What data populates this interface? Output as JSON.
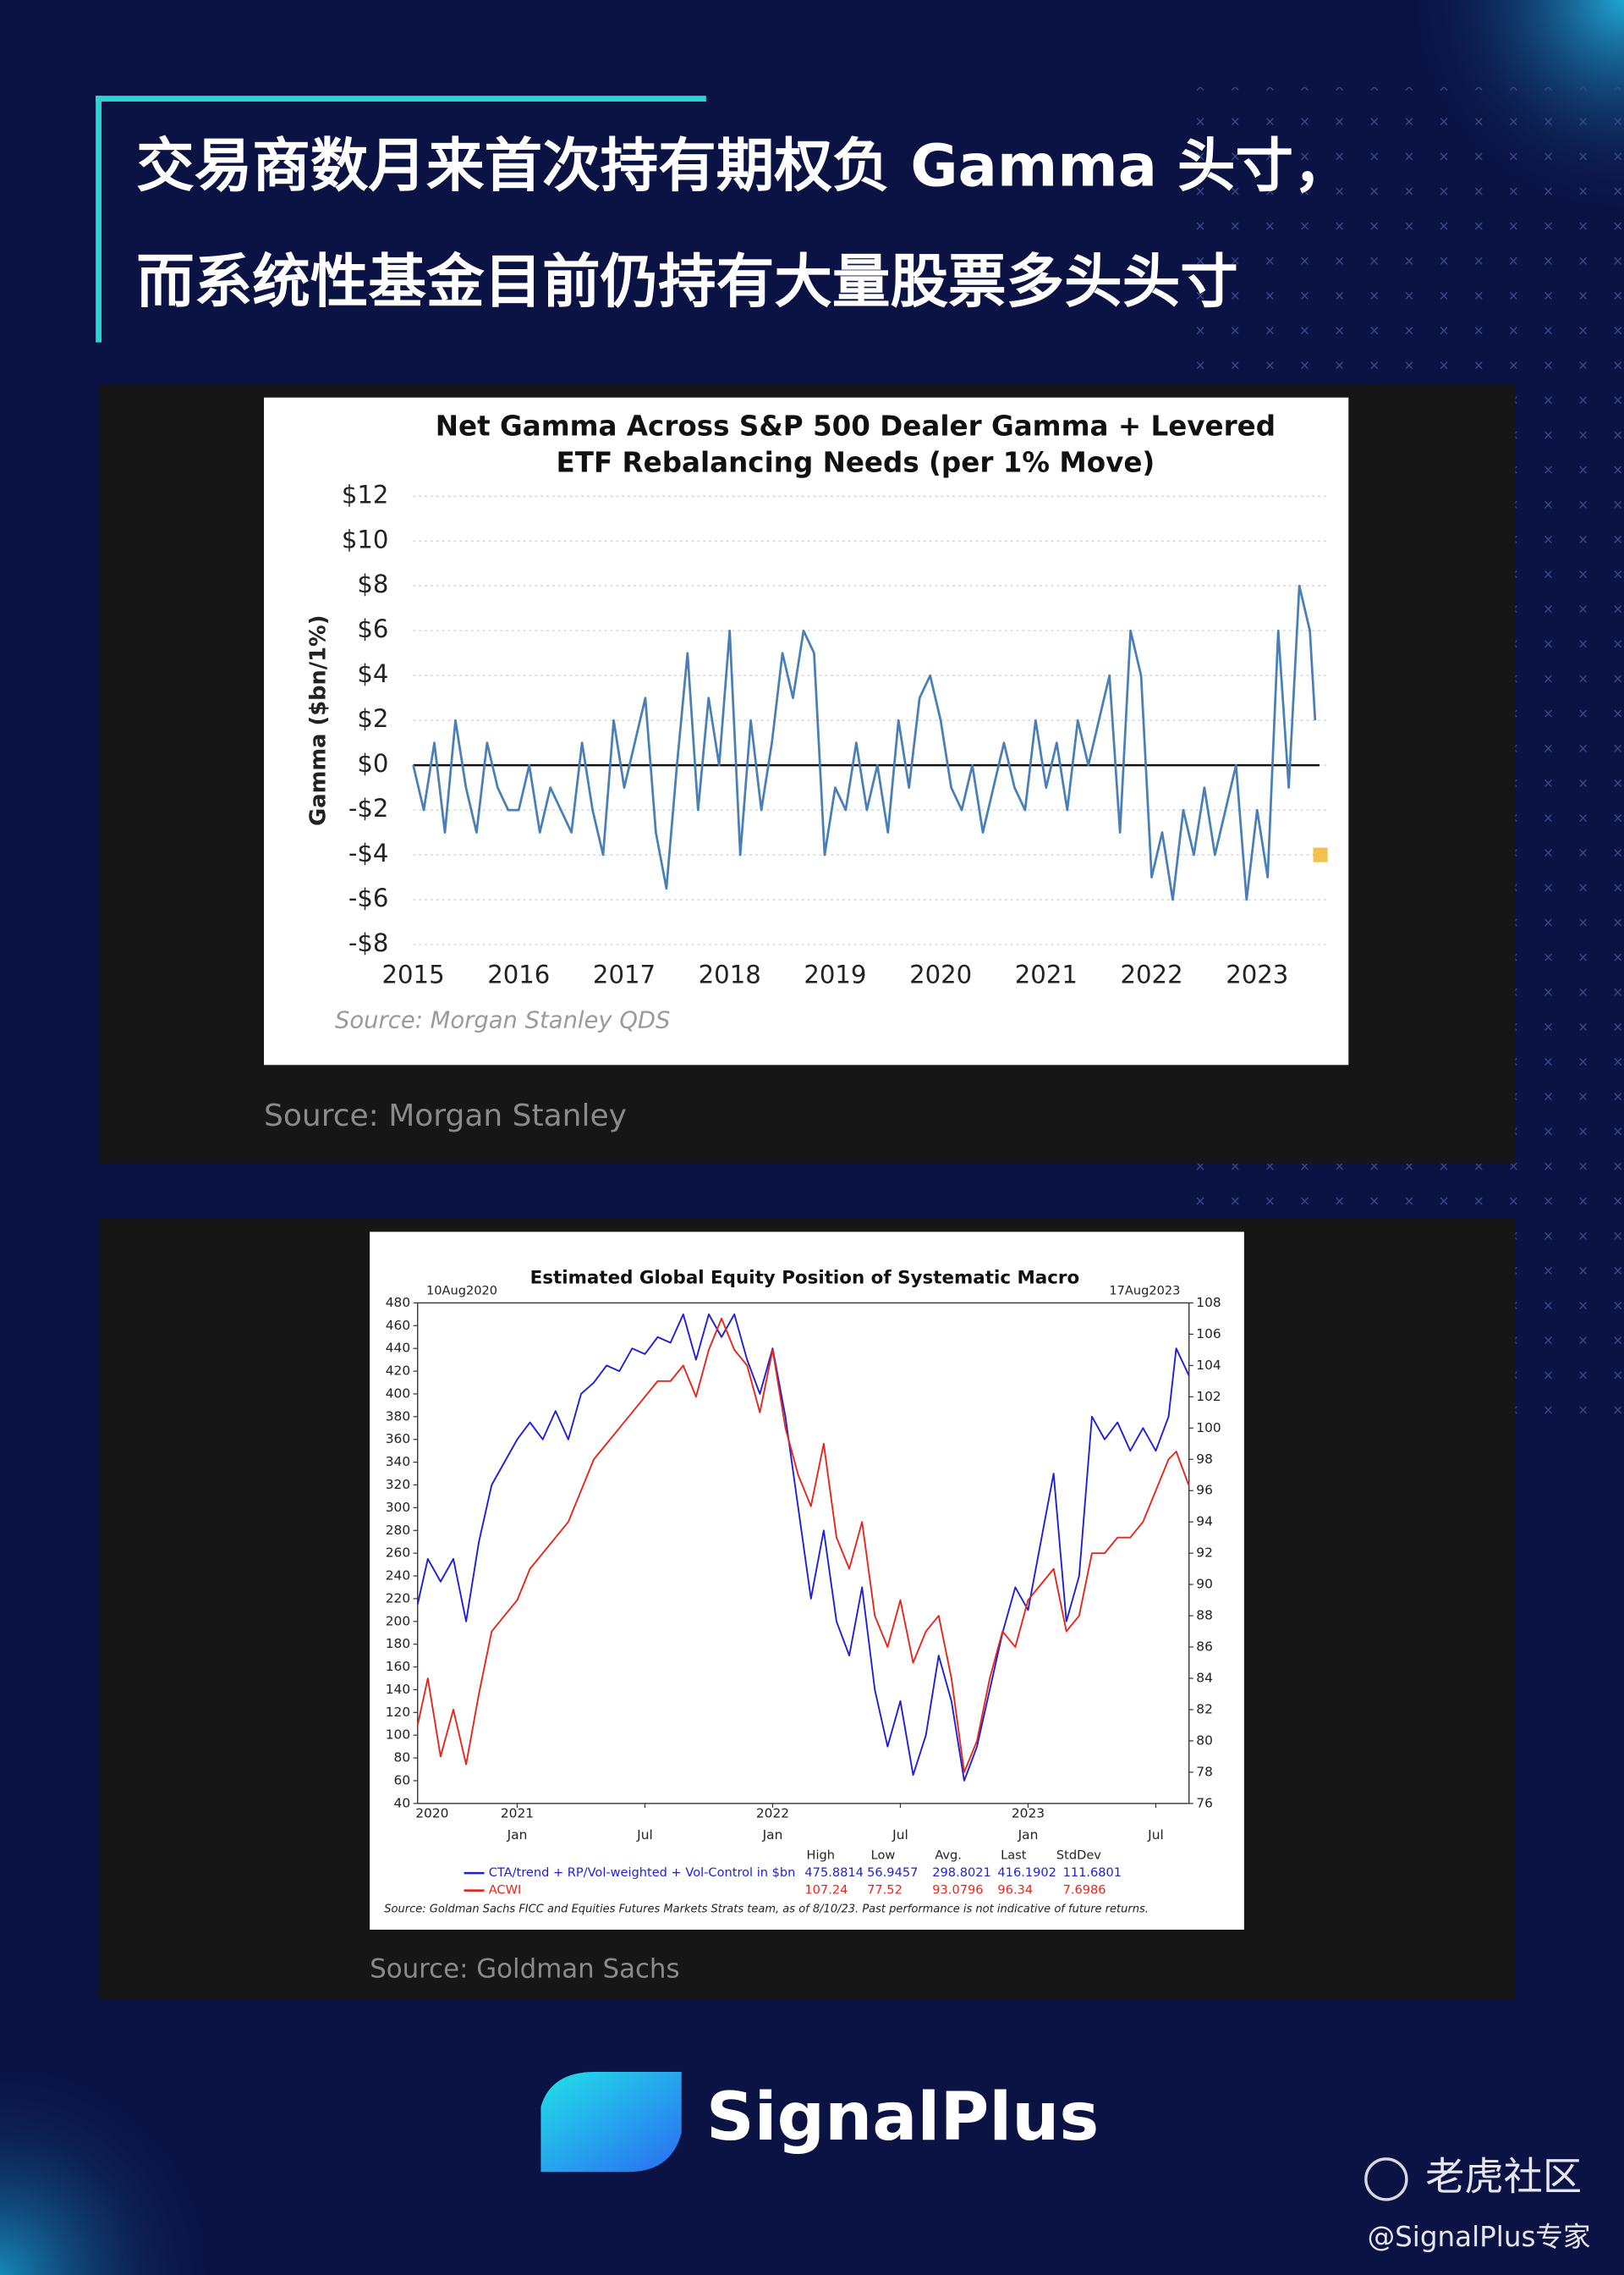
{
  "header": {
    "title": [
      "交易商数月来首次持有期权负 Gamma 头寸，",
      "而系统性基金目前仍持有大量股票多头头寸"
    ]
  },
  "chart_data": [
    {
      "type": "line",
      "title": [
        "Net Gamma Across S&P 500 Dealer Gamma + Levered",
        "ETF Rebalancing Needs (per 1% Move)"
      ],
      "ylabel": "Gamma ($bn/1%)",
      "source": "Source: Morgan Stanley QDS",
      "x": [
        2015.0,
        2015.1,
        2015.2,
        2015.3,
        2015.4,
        2015.5,
        2015.6,
        2015.7,
        2015.8,
        2015.9,
        2016.0,
        2016.1,
        2016.2,
        2016.3,
        2016.4,
        2016.5,
        2016.6,
        2016.7,
        2016.8,
        2016.9,
        2017.0,
        2017.1,
        2017.2,
        2017.3,
        2017.4,
        2017.5,
        2017.6,
        2017.7,
        2017.8,
        2017.9,
        2018.0,
        2018.1,
        2018.2,
        2018.3,
        2018.4,
        2018.5,
        2018.6,
        2018.7,
        2018.8,
        2018.9,
        2019.0,
        2019.1,
        2019.2,
        2019.3,
        2019.4,
        2019.5,
        2019.6,
        2019.7,
        2019.8,
        2019.9,
        2020.0,
        2020.1,
        2020.2,
        2020.3,
        2020.4,
        2020.5,
        2020.6,
        2020.7,
        2020.8,
        2020.9,
        2021.0,
        2021.1,
        2021.2,
        2021.3,
        2021.4,
        2021.5,
        2021.6,
        2021.7,
        2021.8,
        2021.9,
        2022.0,
        2022.1,
        2022.2,
        2022.3,
        2022.4,
        2022.5,
        2022.6,
        2022.7,
        2022.8,
        2022.9,
        2023.0,
        2023.1,
        2023.2,
        2023.3,
        2023.4,
        2023.5,
        2023.55
      ],
      "series": [
        {
          "name": "Net Gamma",
          "color": "#4a7fb5",
          "values": [
            0,
            -2,
            1,
            -3,
            2,
            -1,
            -3,
            1,
            -1,
            -2,
            -2,
            0,
            -3,
            -1,
            -2,
            -3,
            1,
            -2,
            -4,
            2,
            -1,
            1,
            3,
            -3,
            -5.5,
            0,
            5,
            -2,
            3,
            0,
            6,
            -4,
            2,
            -2,
            1,
            5,
            3,
            6,
            5,
            -4,
            -1,
            -2,
            1,
            -2,
            0,
            -3,
            2,
            -1,
            3,
            4,
            2,
            -1,
            -2,
            0,
            -3,
            -1,
            1,
            -1,
            -2,
            2,
            -1,
            1,
            -2,
            2,
            0,
            2,
            4,
            -3,
            6,
            4,
            -5,
            -3,
            -6,
            -2,
            -4,
            -1,
            -4,
            -2,
            0,
            -6,
            -2,
            -5,
            6,
            -1,
            8,
            6,
            2
          ]
        }
      ],
      "markers": [
        {
          "x": 2023.6,
          "value": -4,
          "color": "#f2c14e"
        }
      ],
      "reference_line": 0,
      "xlim": [
        2015,
        2023.66
      ],
      "xticks": [
        2015,
        2016,
        2017,
        2018,
        2019,
        2020,
        2021,
        2022,
        2023
      ],
      "ylim": [
        -8,
        12
      ],
      "yticks": [
        {
          "value": -8,
          "label": "-$8"
        },
        {
          "value": -6,
          "label": "-$6"
        },
        {
          "value": -4,
          "label": "-$4"
        },
        {
          "value": -2,
          "label": "-$2"
        },
        {
          "value": 0,
          "label": "$0"
        },
        {
          "value": 2,
          "label": "$2"
        },
        {
          "value": 4,
          "label": "$4"
        },
        {
          "value": 6,
          "label": "$6"
        },
        {
          "value": 8,
          "label": "$8"
        },
        {
          "value": 10,
          "label": "$10"
        },
        {
          "value": 12,
          "label": "$12"
        }
      ],
      "grid": true,
      "caption": "Source: Morgan Stanley"
    },
    {
      "type": "line",
      "title": [
        "Estimated Global Equity Position of Systematic Macro"
      ],
      "date_labels": [
        "10Aug2020",
        "17Aug2023"
      ],
      "source": "Source: Goldman Sachs FICC and Equities Futures Markets Strats team, as of 8/10/23. Past performance is not indicative of future returns.",
      "x": [
        2020.61,
        2020.65,
        2020.7,
        2020.75,
        2020.8,
        2020.85,
        2020.9,
        2020.95,
        2021.0,
        2021.05,
        2021.1,
        2021.15,
        2021.2,
        2021.25,
        2021.3,
        2021.35,
        2021.4,
        2021.45,
        2021.5,
        2021.55,
        2021.6,
        2021.65,
        2021.7,
        2021.75,
        2021.8,
        2021.85,
        2021.9,
        2021.95,
        2022.0,
        2022.05,
        2022.1,
        2022.15,
        2022.2,
        2022.25,
        2022.3,
        2022.35,
        2022.4,
        2022.45,
        2022.5,
        2022.55,
        2022.6,
        2022.65,
        2022.7,
        2022.75,
        2022.8,
        2022.85,
        2022.9,
        2022.95,
        2023.0,
        2023.05,
        2023.1,
        2023.15,
        2023.2,
        2023.25,
        2023.3,
        2023.35,
        2023.4,
        2023.45,
        2023.5,
        2023.55,
        2023.58,
        2023.63
      ],
      "series": [
        {
          "name": "CTA/trend + RP/Vol-weighted + Vol-Control in $bn",
          "color": "#1f1fd0",
          "values": [
            215,
            255,
            235,
            255,
            200,
            270,
            320,
            340,
            360,
            375,
            360,
            385,
            360,
            400,
            410,
            425,
            420,
            440,
            435,
            450,
            445,
            470,
            430,
            470,
            450,
            470,
            430,
            400,
            440,
            380,
            300,
            220,
            280,
            200,
            170,
            230,
            140,
            90,
            130,
            65,
            100,
            170,
            130,
            60,
            90,
            140,
            190,
            230,
            210,
            270,
            330,
            200,
            240,
            380,
            360,
            375,
            350,
            370,
            350,
            380,
            440,
            416
          ]
        },
        {
          "name": "ACWI",
          "color": "#e0281e",
          "axis": "y2",
          "values": [
            81,
            84,
            79,
            82,
            78.5,
            83,
            87,
            88,
            89,
            91,
            92,
            93,
            94,
            96,
            98,
            99,
            100,
            101,
            102,
            103,
            103,
            104,
            102,
            105,
            107,
            105,
            104,
            101,
            105,
            100,
            97,
            95,
            99,
            93,
            91,
            94,
            88,
            86,
            89,
            85,
            87,
            88,
            84,
            78,
            80,
            84,
            87,
            86,
            89,
            90,
            91,
            87,
            88,
            92,
            92,
            93,
            93,
            94,
            96,
            98,
            98.5,
            96.3
          ]
        }
      ],
      "stats": {
        "columns": [
          "High",
          "Low",
          "Avg.",
          "Last",
          "StdDev"
        ],
        "rows": [
          [
            475.8814,
            56.9457,
            298.8021,
            416.1902,
            111.6801
          ],
          [
            107.24,
            77.52,
            93.0796,
            96.34,
            7.6986
          ]
        ]
      },
      "xlim": [
        2020.61,
        2023.63
      ],
      "xticks": [
        {
          "value": 2021.0,
          "label": "Jan"
        },
        {
          "value": 2021.5,
          "label": "Jul"
        },
        {
          "value": 2022.0,
          "label": "Jan"
        },
        {
          "value": 2022.5,
          "label": "Jul"
        },
        {
          "value": 2023.0,
          "label": "Jan"
        },
        {
          "value": 2023.5,
          "label": "Jul"
        }
      ],
      "year_labels": [
        {
          "value": 2020.61,
          "label": "2020"
        },
        {
          "value": 2021.0,
          "label": "2021"
        },
        {
          "value": 2022.0,
          "label": "2022"
        },
        {
          "value": 2023.0,
          "label": "2023"
        }
      ],
      "ylim": [
        40,
        480
      ],
      "yticks": [
        40,
        60,
        80,
        100,
        120,
        140,
        160,
        180,
        200,
        220,
        240,
        260,
        280,
        300,
        320,
        340,
        360,
        380,
        400,
        420,
        440,
        460,
        480
      ],
      "y2lim": [
        76,
        108
      ],
      "y2ticks": [
        76,
        78,
        80,
        82,
        84,
        86,
        88,
        90,
        92,
        94,
        96,
        98,
        100,
        102,
        104,
        106,
        108
      ],
      "grid": false,
      "caption": "Source: Goldman Sachs"
    }
  ],
  "logo": {
    "text": "SignalPlus"
  },
  "watermark": {
    "site": "老虎社区",
    "author": "@SignalPlus专家"
  }
}
